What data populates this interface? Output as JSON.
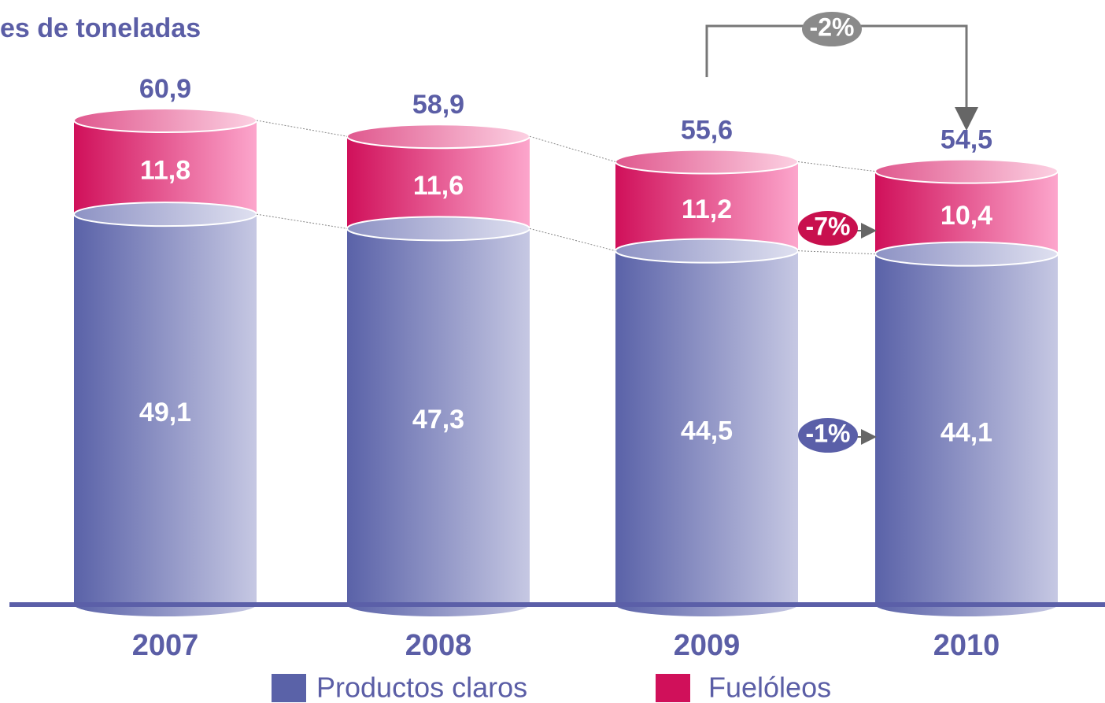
{
  "chart_data": {
    "type": "stacked-cylinder",
    "title": "es de toneladas",
    "categories": [
      "2007",
      "2008",
      "2009",
      "2010"
    ],
    "series": [
      {
        "name": "Productos claros",
        "color": "#5a62a8",
        "values": [
          49.1,
          47.3,
          44.5,
          44.1
        ],
        "value_labels": [
          "49,1",
          "47,3",
          "44,5",
          "44,1"
        ]
      },
      {
        "name": "Fuelóleos",
        "color": "#d0105a",
        "values": [
          11.8,
          11.6,
          11.2,
          10.4
        ],
        "value_labels": [
          "11,8",
          "11,6",
          "11,2",
          "10,4"
        ]
      }
    ],
    "totals": [
      60.9,
      58.9,
      55.6,
      54.5
    ],
    "total_labels": [
      "60,9",
      "58,9",
      "55,6",
      "54,5"
    ],
    "annotations": [
      "-2%",
      "-7%",
      "-1%"
    ]
  }
}
